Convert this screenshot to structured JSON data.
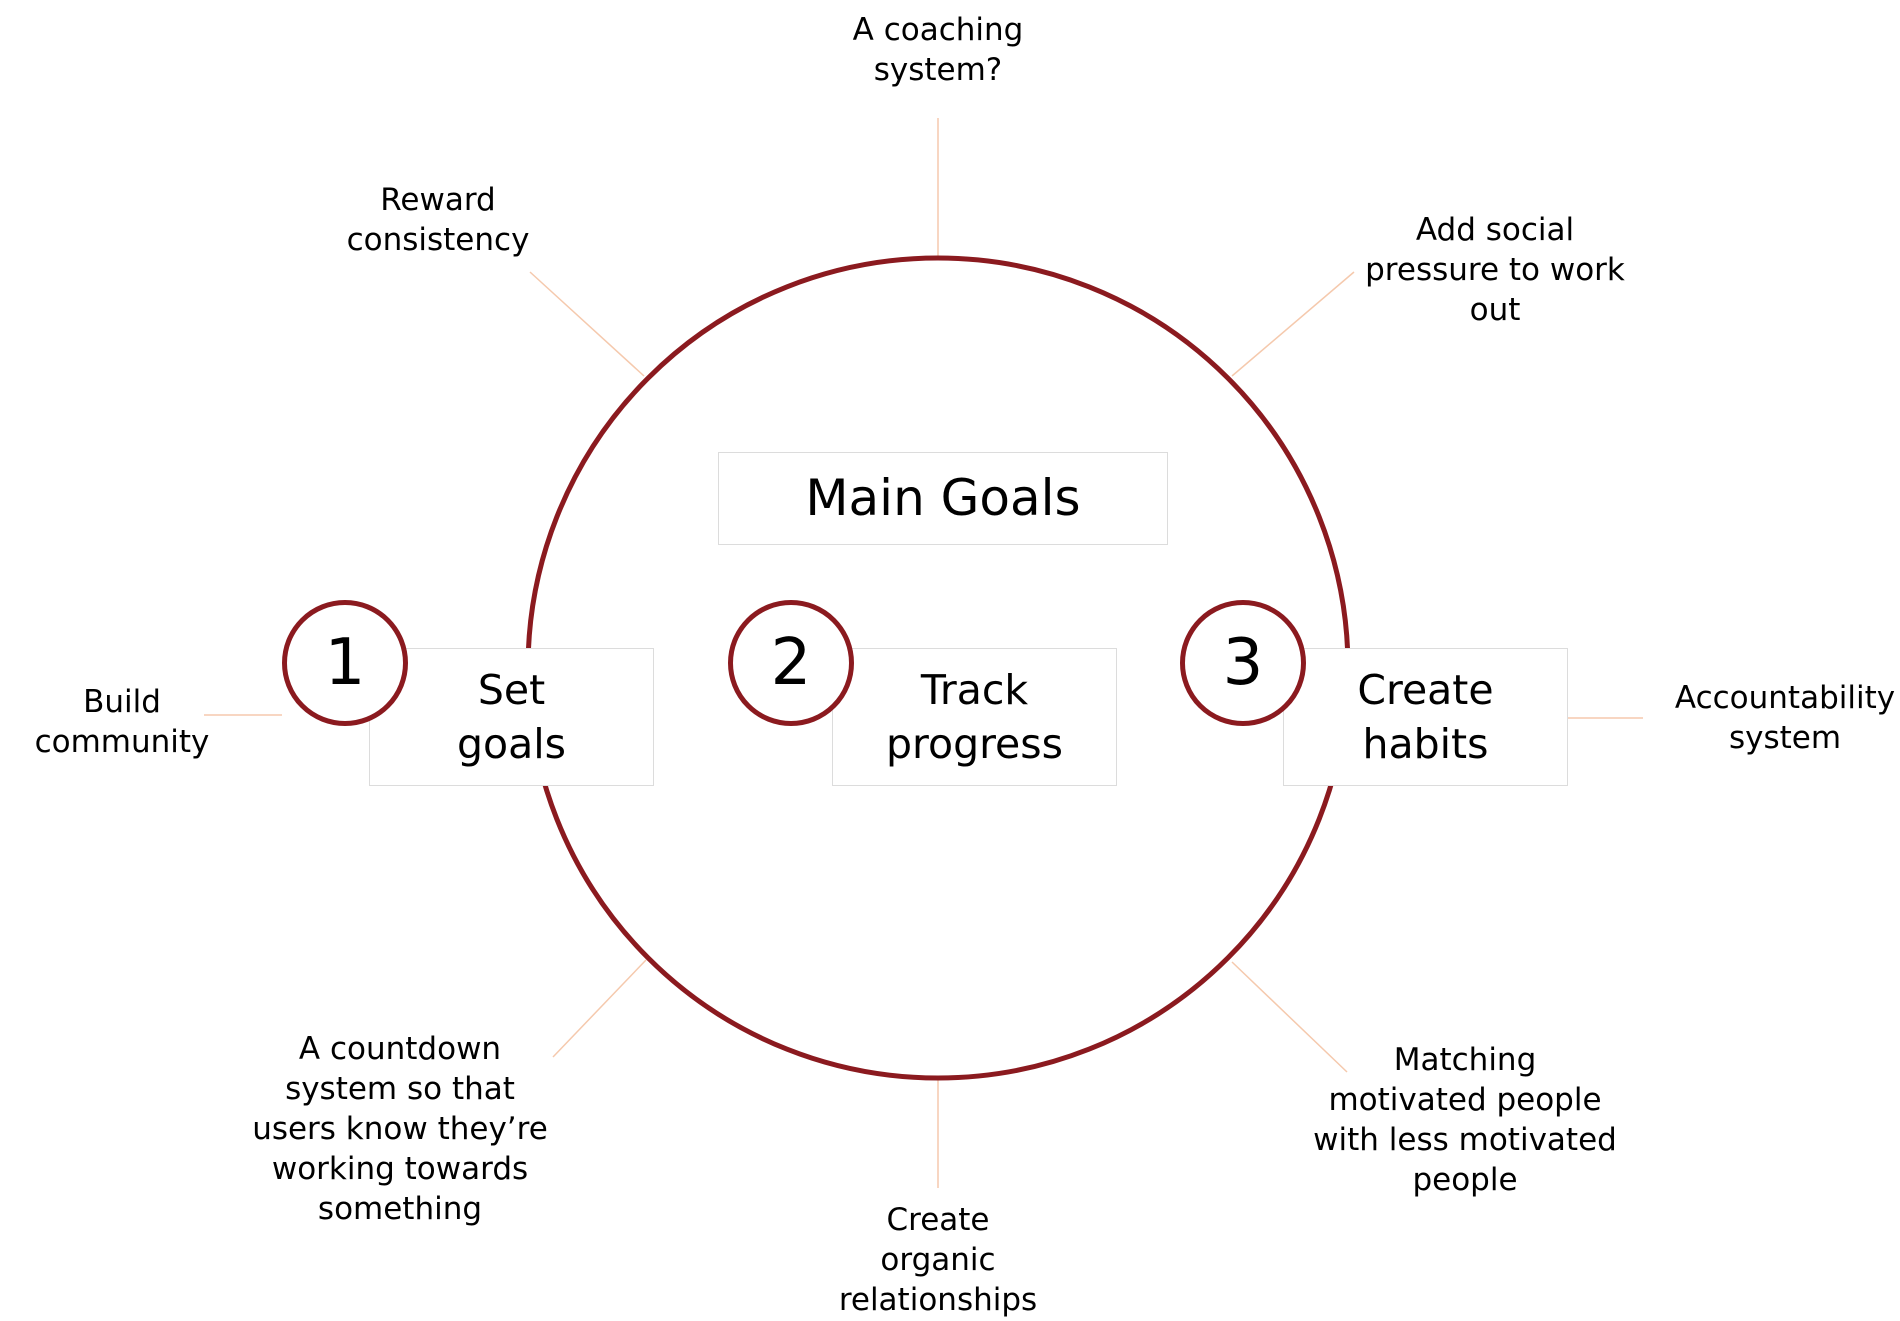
{
  "title": "Main Goals",
  "steps": [
    {
      "number": "1",
      "label": "Set\ngoals"
    },
    {
      "number": "2",
      "label": "Track\nprogress"
    },
    {
      "number": "3",
      "label": "Create\nhabits"
    }
  ],
  "annotations": {
    "top": "A coaching\nsystem?",
    "top_left": "Reward\nconsistency",
    "top_right": "Add social\npressure to work\nout",
    "left": "Build\ncommunity",
    "right": "Accountability\nsystem",
    "bottom_left": "A countdown\nsystem so that\nusers know they’re\nworking towards\nsomething",
    "bottom": "Create\norganic\nrelationships",
    "bottom_right": "Matching\nmotivated people\nwith less motivated\npeople"
  },
  "colors": {
    "circle": "#8b1a1f",
    "connector": "#f5c9ad",
    "box_border": "#dcdcdc"
  }
}
